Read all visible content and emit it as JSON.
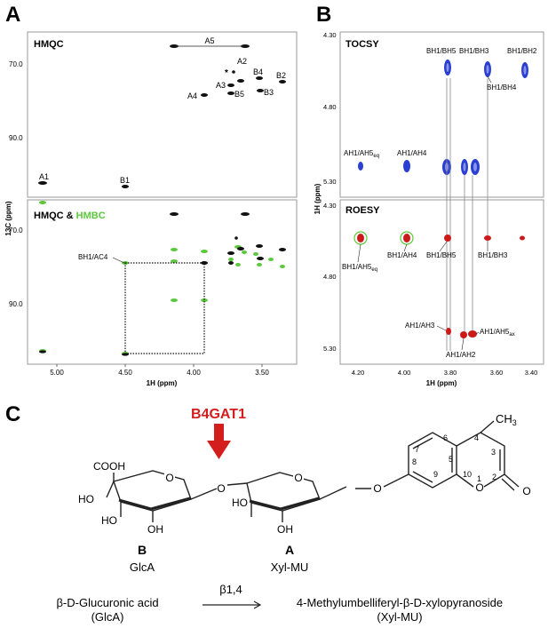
{
  "panels": {
    "a": "A",
    "b": "B",
    "c": "C"
  },
  "colors": {
    "black": "#111111",
    "green": "#5cc83c",
    "blue": "#2b3fd0",
    "red": "#cc1a1a",
    "arrow": "#d41e1e"
  },
  "panelA": {
    "top_title": "HMQC",
    "bottom_title_1": "HMQC & ",
    "bottom_title_2": "HMBC",
    "ylabel": "13C (ppm)",
    "xlabel": "1H (ppm)",
    "xticks": [
      "5.00",
      "4.50",
      "4.00",
      "3.50"
    ],
    "yticks_top": [
      "70.0",
      "90.0"
    ],
    "yticks_bottom": [
      "70.0",
      "90.0"
    ],
    "labels": {
      "a5": "A5",
      "a2": "A2",
      "star": "*",
      "a3": "A3",
      "b4": "B4",
      "b2": "B2",
      "a4": "A4",
      "b5": "B5",
      "b3": "B3",
      "a1": "A1",
      "b1": "B1",
      "bh1ac4": "BH1/AC4"
    }
  },
  "panelB": {
    "top_title": "TOCSY",
    "bottom_title": "ROESY",
    "ylabel": "1H (ppm)",
    "xlabel": "1H (ppm)",
    "xticks": [
      "4.20",
      "4.00",
      "3.80",
      "3.60",
      "3.40"
    ],
    "yticks_top": [
      "4.30",
      "4.80",
      "5.30"
    ],
    "yticks_bottom": [
      "4.30",
      "4.80",
      "5.30"
    ],
    "tocsy_labels": {
      "bh1bh5": "BH1/BH5",
      "bh1bh3": "BH1/BH3",
      "bh1bh2": "BH1/BH2",
      "bh1bh4": "BH1/BH4",
      "ah1ah5eq": "AH1/AH5",
      "ah1ah5eq_sub": "eq",
      "ah1ah4": "AH1/AH4"
    },
    "roesy_labels": {
      "bh1ah4": "BH1/AH4",
      "bh1bh5": "BH1/BH5",
      "bh1bh3": "BH1/BH3",
      "bh1ah5eq": "BH1/AH5",
      "bh1ah5eq_sub": "eq",
      "ah1ah3": "AH1/AH3",
      "ah1ah5ax": "AH1/AH5",
      "ah1ah5ax_sub": "ax",
      "ah1ah2": "AH1/AH2"
    }
  },
  "panelC": {
    "enzyme": "B4GAT1",
    "cooh": "COOH",
    "ho1": "HO",
    "ho2": "HO",
    "oh1": "OH",
    "ho3": "HO",
    "oh2": "OH",
    "ring_o": "O",
    "link_o1": "O",
    "link_o2": "O",
    "ring_o2": "O",
    "lactone_o": "O",
    "carbonyl_o": "O",
    "ch3": "CH",
    "ch3_sub": "3",
    "nums": [
      "7",
      "6",
      "5",
      "4",
      "3",
      "8",
      "9",
      "10",
      "1",
      "2"
    ],
    "label_b": "B",
    "label_a": "A",
    "glca": "GlcA",
    "xylmu": "Xyl-MU",
    "donor_line1": "β-D-Glucuronic acid",
    "donor_line2": "(GlcA)",
    "linkage": "β1,4",
    "acceptor_line1": "4-Methylumbelliferyl-β-D-xylopyranoside",
    "acceptor_line2": "(Xyl-MU)"
  }
}
